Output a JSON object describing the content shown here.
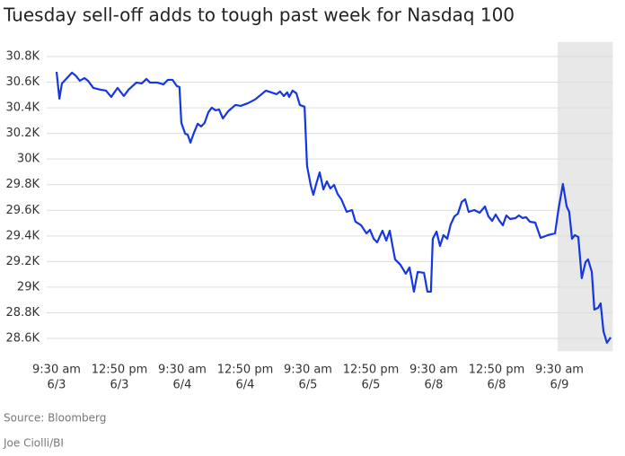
{
  "chart_data": {
    "type": "line",
    "title": "Tuesday sell-off adds to tough past week for Nasdaq 100",
    "source": "Source: Bloomberg",
    "credit": "Joe Ciolli/BI",
    "x": [
      0,
      0.9,
      1.7,
      4.9,
      6,
      7.4,
      8.9,
      10,
      11.7,
      14,
      15.7,
      17.4,
      19.4,
      21.4,
      22.9,
      25.4,
      27.1,
      28.6,
      29.7,
      32,
      34,
      35.4,
      36.9,
      38.3,
      39.1,
      39.7,
      40.9,
      41.7,
      42.6,
      43.7,
      44.9,
      46,
      47.1,
      48.3,
      49.4,
      50.6,
      51.7,
      52.9,
      54.6,
      56.9,
      58.6,
      60.9,
      63.1,
      64.9,
      66.6,
      68.3,
      70,
      71.1,
      72.3,
      73.4,
      74,
      75.1,
      76.3,
      77.4,
      78.9,
      79.7,
      80.9,
      81.7,
      82.6,
      83.7,
      84.9,
      86,
      87.1,
      88.3,
      89.4,
      90.6,
      92.3,
      94,
      95.1,
      96.9,
      98.6,
      99.7,
      100.9,
      102,
      103.7,
      104.9,
      106,
      107.7,
      109.4,
      111.1,
      112.3,
      113.7,
      114.9,
      116.9,
      118,
      119.1,
      119.7,
      120.9,
      122,
      123.1,
      124.3,
      125.4,
      126.6,
      127.7,
      128.9,
      130,
      131.1,
      132.9,
      134.6,
      136.3,
      137.4,
      138.6,
      139.7,
      140.9,
      142,
      143.1,
      144.3,
      146,
      147.1,
      148.3,
      149.4,
      150.6,
      152.3,
      154,
      156.3,
      158.6,
      159.7,
      161.1,
      162.3,
      163.1,
      164,
      164.9,
      166,
      167.1,
      168.3,
      169.1,
      170.3,
      171.1,
      172.3,
      173.1,
      174,
      175.1,
      176.3
    ],
    "series": [
      {
        "name": "Nasdaq 100",
        "color": "#1537e0",
        "values": [
          30681,
          30471,
          30590,
          30674,
          30653,
          30611,
          30632,
          30611,
          30555,
          30541,
          30534,
          30485,
          30555,
          30492,
          30541,
          30597,
          30590,
          30625,
          30597,
          30597,
          30583,
          30618,
          30618,
          30569,
          30562,
          30282,
          30198,
          30191,
          30128,
          30205,
          30275,
          30254,
          30282,
          30366,
          30401,
          30380,
          30387,
          30317,
          30373,
          30422,
          30415,
          30436,
          30464,
          30499,
          30534,
          30520,
          30506,
          30527,
          30492,
          30520,
          30485,
          30534,
          30513,
          30422,
          30408,
          29945,
          29791,
          29721,
          29805,
          29896,
          29763,
          29826,
          29770,
          29798,
          29728,
          29686,
          29588,
          29602,
          29511,
          29483,
          29420,
          29448,
          29378,
          29350,
          29441,
          29364,
          29441,
          29217,
          29175,
          29105,
          29154,
          28965,
          29119,
          29112,
          28965,
          28965,
          29378,
          29434,
          29322,
          29406,
          29378,
          29490,
          29553,
          29574,
          29665,
          29686,
          29588,
          29602,
          29581,
          29630,
          29553,
          29518,
          29567,
          29518,
          29483,
          29560,
          29532,
          29539,
          29560,
          29539,
          29546,
          29511,
          29504,
          29385,
          29406,
          29420,
          29609,
          29805,
          29630,
          29588,
          29378,
          29406,
          29392,
          29070,
          29196,
          29217,
          29119,
          28825,
          28839,
          28874,
          28657,
          28566,
          28608
        ]
      }
    ],
    "xlim": [
      0,
      177
    ],
    "xticks": [
      {
        "value": 0,
        "label": [
          "9:30 am",
          "6/3"
        ]
      },
      {
        "value": 20,
        "label": [
          "12:50 pm",
          "6/3"
        ]
      },
      {
        "value": 40,
        "label": [
          "9:30 am",
          "6/4"
        ]
      },
      {
        "value": 60,
        "label": [
          "12:50 pm",
          "6/4"
        ]
      },
      {
        "value": 80,
        "label": [
          "9:30 am",
          "6/5"
        ]
      },
      {
        "value": 100,
        "label": [
          "12:50 pm",
          "6/5"
        ]
      },
      {
        "value": 120,
        "label": [
          "9:30 am",
          "6/8"
        ]
      },
      {
        "value": 140,
        "label": [
          "12:50 pm",
          "6/8"
        ]
      },
      {
        "value": 160,
        "label": [
          "9:30 am",
          "6/9"
        ]
      }
    ],
    "ylim": [
      28500,
      30900
    ],
    "yticks": [
      {
        "value": 28600,
        "label": "28.6K"
      },
      {
        "value": 28800,
        "label": "28.8K"
      },
      {
        "value": 29000,
        "label": "29K"
      },
      {
        "value": 29200,
        "label": "29.2K"
      },
      {
        "value": 29400,
        "label": "29.4K"
      },
      {
        "value": 29600,
        "label": "29.6K"
      },
      {
        "value": 29800,
        "label": "29.8K"
      },
      {
        "value": 30000,
        "label": "30K"
      },
      {
        "value": 30200,
        "label": "30.2K"
      },
      {
        "value": 30400,
        "label": "30.4K"
      },
      {
        "value": 30600,
        "label": "30.6K"
      },
      {
        "value": 30800,
        "label": "30.8K"
      }
    ],
    "grid": true,
    "shaded_range": [
      159.4,
      177
    ],
    "shade_color": "#e8e8e8"
  }
}
